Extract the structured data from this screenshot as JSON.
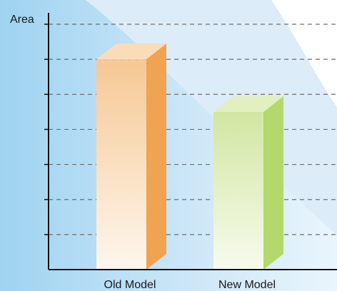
{
  "chart_data": {
    "type": "bar",
    "style": "3d",
    "ylabel": "Area",
    "xlabel": "",
    "categories": [
      "Old Model",
      "New Model"
    ],
    "values": [
      6,
      4.5
    ],
    "ylim": [
      0,
      7
    ],
    "grid": true,
    "series_colors": [
      {
        "front_top": "#f6c894",
        "front_bottom": "#fef6ee",
        "side": "#f0a350",
        "top": "#fbdcb8"
      },
      {
        "front_top": "#d2e6a2",
        "front_bottom": "#f7fbee",
        "side": "#b4d86b",
        "top": "#e2f0c0"
      }
    ],
    "background": {
      "base": "#e3f1fb",
      "accent": "#a9d9f3"
    }
  }
}
